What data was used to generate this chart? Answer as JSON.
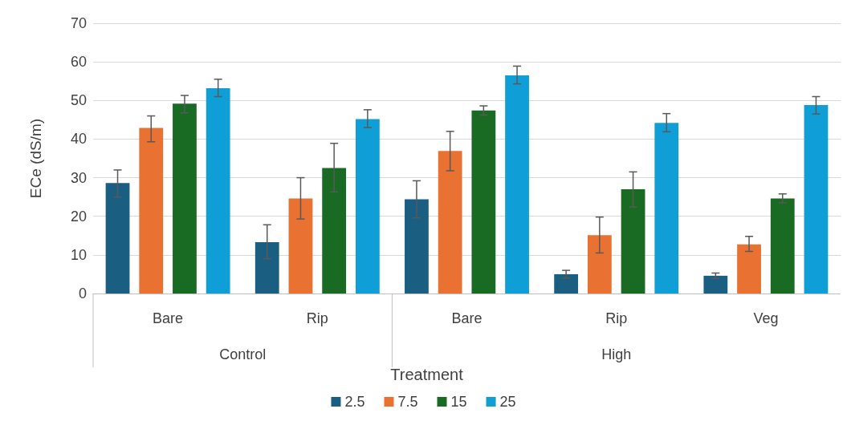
{
  "chart_data": {
    "type": "bar",
    "xlabel": "Treatment",
    "ylabel": "ECe (dS/m)",
    "categories": [
      "Bare",
      "Rip",
      "Bare",
      "Rip",
      "Veg"
    ],
    "annotations": [
      "Control",
      "High"
    ],
    "series": [
      {
        "name": "2.5",
        "color": "#1a5f82",
        "values": [
          28.6,
          13.3,
          24.4,
          5.0,
          4.6
        ],
        "errors": [
          [
            25,
            32
          ],
          [
            9,
            17.8
          ],
          [
            19.6,
            29.2
          ],
          [
            4,
            6
          ],
          [
            3.9,
            5.3
          ]
        ]
      },
      {
        "name": "7.5",
        "color": "#e97132",
        "values": [
          42.9,
          24.6,
          36.9,
          15.1,
          12.7
        ],
        "errors": [
          [
            39.3,
            46
          ],
          [
            19.3,
            30
          ],
          [
            31.8,
            42
          ],
          [
            10.5,
            19.8
          ],
          [
            10.9,
            14.8
          ]
        ]
      },
      {
        "name": "15",
        "color": "#196b24",
        "values": [
          49.2,
          32.5,
          47.4,
          27,
          24.6
        ],
        "errors": [
          [
            46.8,
            51.3
          ],
          [
            26.3,
            38.9
          ],
          [
            46.2,
            48.6
          ],
          [
            22.4,
            31.5
          ],
          [
            23.5,
            25.8
          ]
        ]
      },
      {
        "name": "25",
        "color": "#0f9ed5",
        "values": [
          53.2,
          45.2,
          56.5,
          44.2,
          48.8
        ],
        "errors": [
          [
            51,
            55.5
          ],
          [
            43,
            47.6
          ],
          [
            54.3,
            58.9
          ],
          [
            41.9,
            46.6
          ],
          [
            46.5,
            51
          ]
        ]
      }
    ],
    "ylim": [
      0,
      70
    ],
    "yticks": [
      0,
      10,
      20,
      30,
      40,
      50,
      60,
      70
    ],
    "grid": "y",
    "legend": "bottom"
  }
}
